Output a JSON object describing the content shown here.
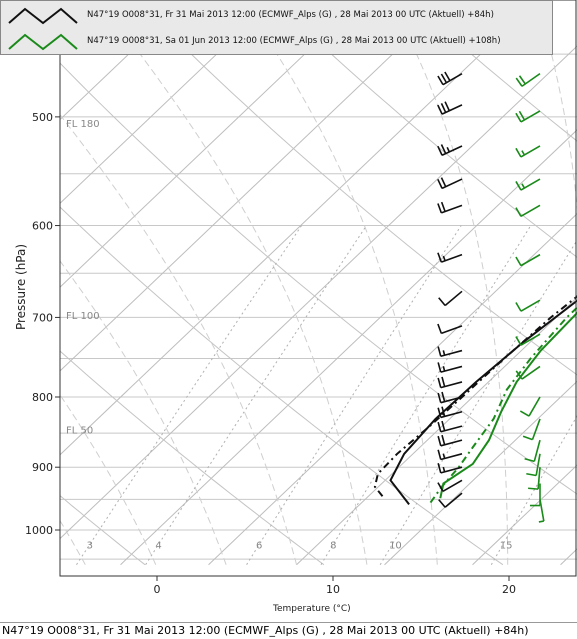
{
  "legend": [
    {
      "label": "N47°19 O008°31, Fr 31 Mai 2013 12:00 (ECMWF_Alps (G) , 28 Mai 2013 00 UTC (Aktuell) +84h)",
      "color": "#111111"
    },
    {
      "label": "N47°19 O008°31, Sa 01 Jun 2013 12:00 (ECMWF_Alps (G) , 28 Mai 2013 00 UTC (Aktuell) +108h)",
      "color": "#1a8a1a"
    }
  ],
  "status_bar": "N47°19 O008°31, Fr 31 Mai 2013 12:00 (ECMWF_Alps (G) , 28 Mai 2013 00 UTC (Aktuell) +84h)",
  "chart_data": {
    "type": "line",
    "xlabel": "Temperature (°C)",
    "ylabel": "Pressure (hPa)",
    "xlim": [
      -5.5,
      23
    ],
    "x_ticks": [
      0,
      10,
      20
    ],
    "y_ticks": [
      500,
      600,
      700,
      800,
      900,
      1000
    ],
    "ylim": [
      1060,
      455
    ],
    "flight_levels": [
      {
        "label": "FL 180",
        "p": 505
      },
      {
        "label": "FL 100",
        "p": 697
      },
      {
        "label": "FL 50",
        "p": 845
      }
    ],
    "mixing_ratio_labels": [
      "3",
      "4",
      "6",
      "8",
      "10",
      "15"
    ],
    "series": [
      {
        "name": "N47°19 O008°31, Fr 31 Mai 2013 12:00 (ECMWF_Alps (G) , 28 Mai 2013 00 UTC (Aktuell) +84h)",
        "role": "temperature",
        "color": "#111111",
        "points": [
          [
            12.8,
            958
          ],
          [
            10.3,
            920
          ],
          [
            9.5,
            880
          ],
          [
            9.2,
            830
          ],
          [
            9.3,
            780
          ],
          [
            9.6,
            730
          ],
          [
            10.2,
            680
          ],
          [
            10.8,
            640
          ],
          [
            11.0,
            605
          ],
          [
            10.5,
            570
          ],
          [
            9.3,
            530
          ],
          [
            8.1,
            495
          ],
          [
            7.4,
            470
          ],
          [
            6.8,
            455
          ]
        ]
      },
      {
        "name": "N47°19 O008°31, Fr 31 Mai 2013 12:00 (ECMWF_Alps (G) , 28 Mai 2013 00 UTC (Aktuell) +84h)",
        "role": "dewpoint",
        "color": "#111111",
        "points": [
          [
            10.8,
            945
          ],
          [
            9.8,
            930
          ],
          [
            9.2,
            910
          ],
          [
            9.1,
            880
          ],
          [
            9.3,
            840
          ],
          [
            9.4,
            800
          ],
          [
            9.5,
            750
          ],
          [
            9.7,
            700
          ],
          [
            10.2,
            650
          ],
          [
            10.6,
            615
          ],
          [
            9.8,
            590
          ],
          [
            7.6,
            570
          ],
          [
            5.2,
            560
          ],
          [
            4.4,
            540
          ],
          [
            4.1,
            505
          ],
          [
            3.6,
            486
          ],
          [
            2.8,
            475
          ],
          [
            1.6,
            460
          ]
        ]
      },
      {
        "name": "N47°19 O008°31, Sa 01 Jun 2013 12:00 (ECMWF_Alps (G) , 28 Mai 2013 00 UTC (Aktuell) +108h)",
        "role": "temperature",
        "color": "#1a8a1a",
        "points": [
          [
            14.2,
            948
          ],
          [
            13.5,
            925
          ],
          [
            14.0,
            895
          ],
          [
            13.5,
            860
          ],
          [
            12.5,
            820
          ],
          [
            11.6,
            780
          ],
          [
            11.1,
            740
          ],
          [
            10.9,
            690
          ],
          [
            10.9,
            640
          ],
          [
            11.3,
            605
          ],
          [
            10.9,
            570
          ],
          [
            9.8,
            530
          ],
          [
            8.6,
            490
          ],
          [
            8.0,
            470
          ],
          [
            7.6,
            455
          ]
        ]
      },
      {
        "name": "N47°19 O008°31, Sa 01 Jun 2013 12:00 (ECMWF_Alps (G) , 28 Mai 2013 00 UTC (Aktuell) +108h)",
        "role": "dewpoint",
        "color": "#1a8a1a",
        "points": [
          [
            13.9,
            955
          ],
          [
            13.6,
            930
          ],
          [
            13.4,
            900
          ],
          [
            13.0,
            870
          ],
          [
            12.5,
            830
          ],
          [
            11.5,
            790
          ],
          [
            11.0,
            750
          ],
          [
            10.6,
            700
          ],
          [
            10.6,
            660
          ],
          [
            10.5,
            620
          ],
          [
            10.6,
            600
          ],
          [
            9.9,
            580
          ],
          [
            8.9,
            550
          ],
          [
            7.6,
            520
          ],
          [
            6.9,
            495
          ],
          [
            6.4,
            475
          ],
          [
            5.8,
            460
          ]
        ]
      }
    ],
    "wind_barbs": [
      {
        "color": "#111111",
        "levels": [
          {
            "p": 465,
            "speed": 30,
            "dir": 240
          },
          {
            "p": 490,
            "speed": 30,
            "dir": 245
          },
          {
            "p": 525,
            "speed": 25,
            "dir": 245
          },
          {
            "p": 555,
            "speed": 20,
            "dir": 245
          },
          {
            "p": 580,
            "speed": 20,
            "dir": 250
          },
          {
            "p": 630,
            "speed": 15,
            "dir": 250
          },
          {
            "p": 670,
            "speed": 10,
            "dir": 230
          },
          {
            "p": 710,
            "speed": 10,
            "dir": 250
          },
          {
            "p": 740,
            "speed": 15,
            "dir": 255
          },
          {
            "p": 760,
            "speed": 15,
            "dir": 255
          },
          {
            "p": 780,
            "speed": 20,
            "dir": 255
          },
          {
            "p": 800,
            "speed": 20,
            "dir": 255
          },
          {
            "p": 820,
            "speed": 20,
            "dir": 255
          },
          {
            "p": 840,
            "speed": 20,
            "dir": 255
          },
          {
            "p": 860,
            "speed": 20,
            "dir": 255
          },
          {
            "p": 880,
            "speed": 15,
            "dir": 255
          },
          {
            "p": 900,
            "speed": 15,
            "dir": 255
          },
          {
            "p": 920,
            "speed": 10,
            "dir": 240
          },
          {
            "p": 940,
            "speed": 10,
            "dir": 230
          }
        ]
      },
      {
        "color": "#1a8a1a",
        "levels": [
          {
            "p": 465,
            "speed": 20,
            "dir": 235
          },
          {
            "p": 495,
            "speed": 20,
            "dir": 240
          },
          {
            "p": 525,
            "speed": 15,
            "dir": 240
          },
          {
            "p": 555,
            "speed": 15,
            "dir": 240
          },
          {
            "p": 580,
            "speed": 10,
            "dir": 240
          },
          {
            "p": 630,
            "speed": 10,
            "dir": 240
          },
          {
            "p": 680,
            "speed": 10,
            "dir": 240
          },
          {
            "p": 720,
            "speed": 10,
            "dir": 240
          },
          {
            "p": 760,
            "speed": 10,
            "dir": 235
          },
          {
            "p": 800,
            "speed": 10,
            "dir": 210
          },
          {
            "p": 830,
            "speed": 10,
            "dir": 200
          },
          {
            "p": 860,
            "speed": 10,
            "dir": 195
          },
          {
            "p": 880,
            "speed": 10,
            "dir": 190
          },
          {
            "p": 900,
            "speed": 10,
            "dir": 185
          },
          {
            "p": 925,
            "speed": 10,
            "dir": 180
          },
          {
            "p": 950,
            "speed": 5,
            "dir": 170
          }
        ]
      }
    ]
  }
}
